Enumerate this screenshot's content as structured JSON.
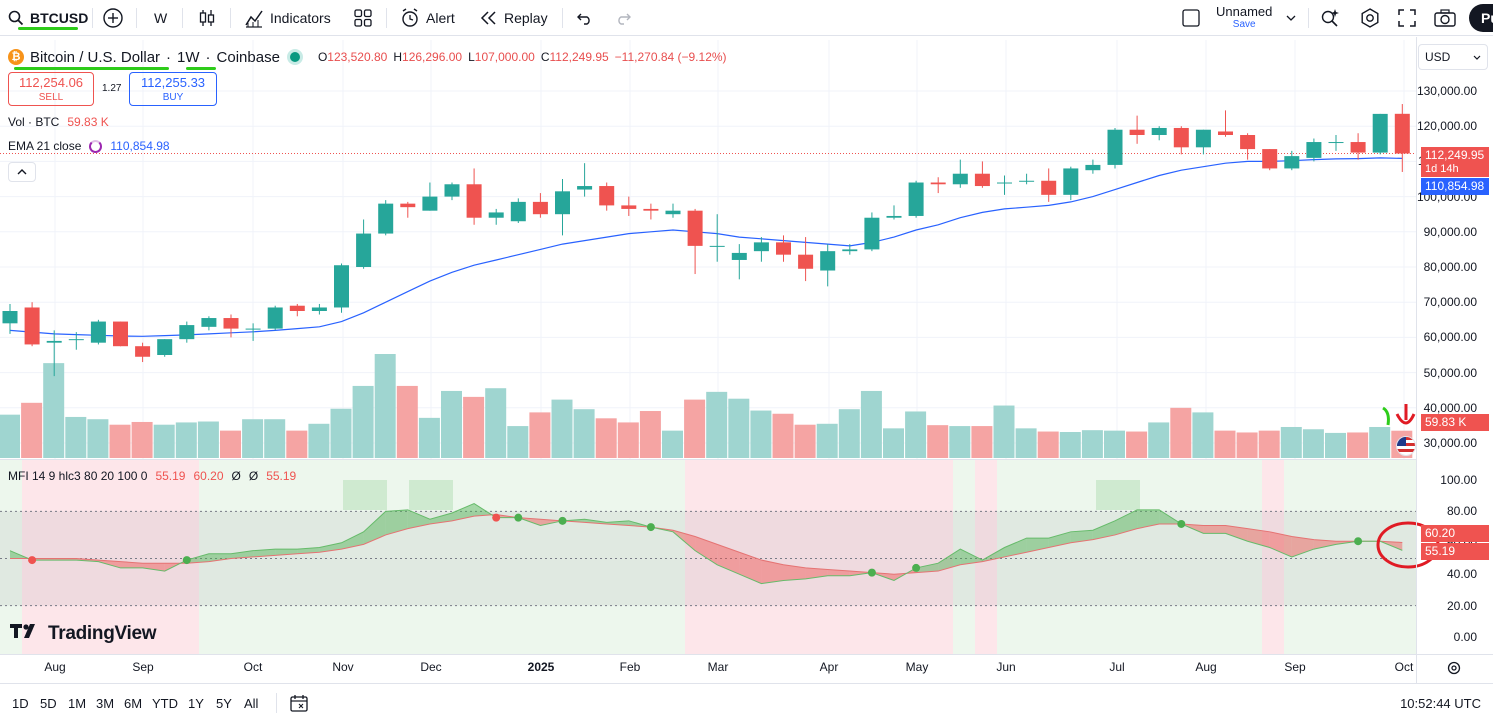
{
  "toolbar": {
    "symbol": "BTCUSD",
    "interval": "W",
    "indicators_label": "Indicators",
    "alert_label": "Alert",
    "replay_label": "Replay",
    "layout_name": "Unnamed",
    "save_label": "Save",
    "publish_label": "Pu"
  },
  "legend": {
    "title": "Bitcoin / U.S. Dollar",
    "interval": "1W",
    "exchange": "Coinbase",
    "sep": "·",
    "o_label": "O",
    "o_value": "123,520.80",
    "h_label": "H",
    "h_value": "126,296.00",
    "l_label": "L",
    "l_value": "107,000.00",
    "c_label": "C",
    "c_value": "112,249.95",
    "change": "−11,270.84 (−9.12%)"
  },
  "sell": {
    "price": "112,254.06",
    "label": "SELL"
  },
  "buy": {
    "price": "112,255.33",
    "label": "BUY"
  },
  "spread": "1.27",
  "volume_legend": {
    "label": "Vol · BTC",
    "value": "59.83 K"
  },
  "ema_legend": {
    "label": "EMA 21 close",
    "value": "110,854.98"
  },
  "mfi_legend": {
    "label": "MFI 14 9 hlc3 80 20 100 0",
    "v1": "55.19",
    "v2": "60.20",
    "v3": "Ø",
    "v4": "Ø",
    "v5": "55.19"
  },
  "currency": "USD",
  "price_axis": [
    "130,000.00",
    "120,000.00",
    "110,000.00",
    "100,000.00",
    "90,000.00",
    "80,000.00",
    "70,000.00",
    "60,000.00",
    "50,000.00",
    "40,000.00",
    "30,000.00"
  ],
  "price_tags": {
    "close": "112,249.95",
    "countdown": "1d 14h",
    "ema": "110,854.98",
    "volume": "59.83 K"
  },
  "mfi_axis": [
    "100.00",
    "80.00",
    "60.00",
    "40.00",
    "20.00",
    "0.00"
  ],
  "mfi_tags": {
    "signal": "60.20",
    "mfi": "55.19"
  },
  "time_axis": [
    {
      "label": "Aug",
      "bold": false
    },
    {
      "label": "Sep",
      "bold": false
    },
    {
      "label": "Oct",
      "bold": false
    },
    {
      "label": "Nov",
      "bold": false
    },
    {
      "label": "Dec",
      "bold": false
    },
    {
      "label": "2025",
      "bold": true
    },
    {
      "label": "Feb",
      "bold": false
    },
    {
      "label": "Mar",
      "bold": false
    },
    {
      "label": "Apr",
      "bold": false
    },
    {
      "label": "May",
      "bold": false
    },
    {
      "label": "Jun",
      "bold": false
    },
    {
      "label": "Jul",
      "bold": false
    },
    {
      "label": "Aug",
      "bold": false
    },
    {
      "label": "Sep",
      "bold": false
    },
    {
      "label": "Oct",
      "bold": false
    }
  ],
  "ranges": [
    "1D",
    "5D",
    "1M",
    "3M",
    "6M",
    "YTD",
    "1Y",
    "5Y",
    "All"
  ],
  "clock": "10:52:44 UTC",
  "brand": "TradingView",
  "colors": {
    "up": "#26a69a",
    "down": "#ef5350",
    "ema": "#2962ff",
    "volUp": "#9fd5d0",
    "volDown": "#f5a4a3",
    "mfiUp": "#4caf50",
    "mfiDown": "#ef5350",
    "accent": "#2962ff"
  },
  "chart_data": {
    "type": "candlestick",
    "interval": "weekly",
    "candles": [
      [
        64000,
        69500,
        61000,
        67500
      ],
      [
        68500,
        70000,
        57500,
        58000
      ],
      [
        58500,
        62000,
        49000,
        59000
      ],
      [
        59500,
        61500,
        56500,
        59500
      ],
      [
        58500,
        65000,
        58000,
        64500
      ],
      [
        64500,
        64500,
        57500,
        57500
      ],
      [
        57500,
        58500,
        53000,
        54500
      ],
      [
        55000,
        59500,
        54500,
        59500
      ],
      [
        59500,
        64500,
        58500,
        63500
      ],
      [
        63000,
        66000,
        62000,
        65500
      ],
      [
        65500,
        66500,
        60000,
        62500
      ],
      [
        62500,
        64000,
        59000,
        62500
      ],
      [
        62500,
        69000,
        62000,
        68500
      ],
      [
        69000,
        69500,
        66000,
        67500
      ],
      [
        67500,
        69500,
        66500,
        68500
      ],
      [
        68500,
        81000,
        67000,
        80500
      ],
      [
        80000,
        93500,
        79500,
        89500
      ],
      [
        89500,
        99000,
        89000,
        98000
      ],
      [
        98000,
        98500,
        94000,
        97000
      ],
      [
        96000,
        104000,
        96000,
        100000
      ],
      [
        100000,
        104000,
        99000,
        103500
      ],
      [
        103500,
        108000,
        92000,
        94000
      ],
      [
        94000,
        96500,
        92000,
        95500
      ],
      [
        93000,
        99500,
        92500,
        98500
      ],
      [
        98500,
        101000,
        94000,
        95000
      ],
      [
        95000,
        105000,
        89000,
        101500
      ],
      [
        102000,
        109500,
        100000,
        103000
      ],
      [
        103000,
        104000,
        96000,
        97500
      ],
      [
        97500,
        100000,
        94500,
        96500
      ],
      [
        96500,
        98000,
        93500,
        96000
      ],
      [
        95000,
        98000,
        94000,
        96000
      ],
      [
        96000,
        96500,
        78000,
        86000
      ],
      [
        86000,
        95000,
        81500,
        86000
      ],
      [
        82000,
        86500,
        76500,
        84000
      ],
      [
        84500,
        88500,
        81500,
        87000
      ],
      [
        87000,
        89000,
        81500,
        83500
      ],
      [
        83500,
        88500,
        76000,
        79500
      ],
      [
        79000,
        86500,
        74500,
        84500
      ],
      [
        84500,
        86500,
        83500,
        85000
      ],
      [
        85000,
        95500,
        84500,
        94000
      ],
      [
        94000,
        97500,
        93500,
        94500
      ],
      [
        94500,
        104500,
        94000,
        104000
      ],
      [
        104000,
        105500,
        101000,
        103500
      ],
      [
        103500,
        110500,
        102500,
        106500
      ],
      [
        106500,
        110000,
        102500,
        103000
      ],
      [
        104000,
        106000,
        100500,
        104000
      ],
      [
        104500,
        106500,
        103500,
        104500
      ],
      [
        104500,
        108000,
        98500,
        100500
      ],
      [
        100500,
        108500,
        99000,
        108000
      ],
      [
        107500,
        110500,
        106500,
        109000
      ],
      [
        109000,
        119500,
        108000,
        119000
      ],
      [
        119000,
        123000,
        115000,
        117500
      ],
      [
        117500,
        120000,
        116000,
        119500
      ],
      [
        119500,
        120000,
        112000,
        114000
      ],
      [
        114000,
        119000,
        112000,
        119000
      ],
      [
        118500,
        124500,
        117000,
        117500
      ],
      [
        117500,
        118000,
        110500,
        113500
      ],
      [
        113500,
        113500,
        107500,
        108000
      ],
      [
        108000,
        113000,
        107500,
        111500
      ],
      [
        111000,
        116500,
        110000,
        115500
      ],
      [
        115500,
        117500,
        113000,
        115500
      ],
      [
        115500,
        118000,
        110500,
        112500
      ],
      [
        112500,
        123500,
        112000,
        123500
      ],
      [
        123520.8,
        126296,
        107000,
        112249.95
      ]
    ],
    "ema21": [
      62000,
      61500,
      61000,
      60800,
      60600,
      60400,
      60300,
      60500,
      60700,
      61000,
      61300,
      61600,
      62000,
      62500,
      63000,
      64500,
      67000,
      70000,
      73000,
      76000,
      78500,
      80500,
      82000,
      83500,
      85000,
      86500,
      87500,
      88500,
      89500,
      90000,
      90500,
      90000,
      89500,
      88500,
      88000,
      87500,
      87000,
      86500,
      86000,
      87000,
      88500,
      90500,
      92000,
      94000,
      95500,
      96500,
      97000,
      97500,
      98500,
      100000,
      102000,
      104000,
      106000,
      107500,
      108500,
      109500,
      110000,
      110000,
      110200,
      110500,
      110700,
      110800,
      111000,
      110854.98
    ],
    "volume_k": [
      95,
      121,
      208,
      90,
      85,
      73,
      79,
      73,
      78,
      80,
      60,
      85,
      85,
      60,
      75,
      108,
      158,
      228,
      158,
      88,
      147,
      134,
      153,
      70,
      100,
      128,
      107,
      87,
      78,
      103,
      60,
      128,
      145,
      130,
      104,
      97,
      73,
      75,
      107,
      147,
      65,
      102,
      72,
      70,
      70,
      115,
      65,
      58,
      57,
      61,
      60,
      58,
      78,
      110,
      100,
      60,
      56,
      60,
      68,
      63,
      55,
      56,
      68,
      59.83
    ],
    "mfi": [
      55,
      49,
      49,
      49,
      48,
      44,
      44,
      42,
      49,
      53,
      53,
      55,
      56,
      56,
      57,
      60,
      67,
      80,
      81,
      75,
      79,
      85,
      76,
      76,
      71,
      74,
      75,
      73,
      74,
      70,
      67,
      55,
      46,
      40,
      34,
      36,
      37,
      39,
      39,
      41,
      36,
      44,
      47,
      56,
      49,
      57,
      63,
      63,
      67,
      68,
      74,
      81,
      81,
      72,
      66,
      66,
      61,
      57,
      51,
      56,
      59,
      61,
      61,
      55.19
    ],
    "mfi_signal": [
      50,
      50,
      50,
      50,
      49,
      48,
      47,
      47,
      47,
      48,
      50,
      51,
      52,
      53,
      54,
      56,
      59,
      65,
      69,
      72,
      74,
      77,
      78,
      76,
      75,
      74,
      73,
      72,
      71,
      70,
      68,
      64,
      59,
      54,
      49,
      46,
      44,
      43,
      42,
      41,
      40,
      41,
      42,
      46,
      48,
      51,
      54,
      57,
      60,
      62,
      65,
      69,
      72,
      72,
      71,
      71,
      69,
      67,
      64,
      62,
      61,
      61,
      61,
      60.2
    ],
    "y_range": [
      25000,
      135000
    ],
    "mfi_range": [
      -5,
      105
    ],
    "mfi_bands": [
      80,
      50,
      20
    ]
  }
}
